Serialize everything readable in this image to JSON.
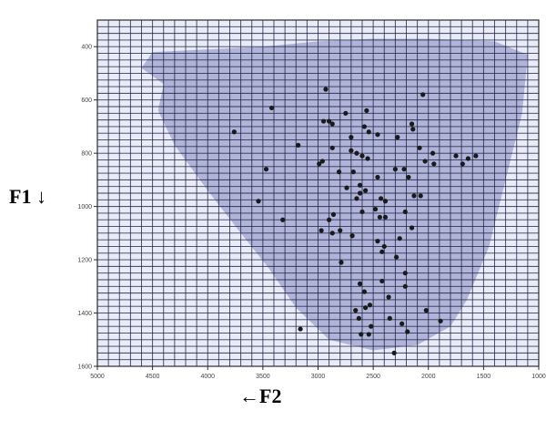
{
  "chart_data": {
    "type": "scatter",
    "xlabel": "←F2",
    "ylabel": "F1 ↓",
    "x_reversed": true,
    "y_reversed": true,
    "xlim": [
      5000,
      1000
    ],
    "ylim": [
      300,
      1600
    ],
    "xticks": [
      5000,
      4500,
      4000,
      3500,
      3000,
      2500,
      2000,
      1500,
      1000
    ],
    "yticks": [
      400,
      600,
      800,
      1000,
      1200,
      1400,
      1600
    ],
    "grid": true,
    "colors": {
      "background": "#e9ebf7",
      "region": "#a9aed4",
      "grid": "#1c2140",
      "frame": "#2c2c2c",
      "points": "#1a1a1a"
    },
    "region_outline": [
      [
        4400,
        540
      ],
      [
        4600,
        480
      ],
      [
        4500,
        420
      ],
      [
        4000,
        410
      ],
      [
        3500,
        400
      ],
      [
        3000,
        380
      ],
      [
        2500,
        370
      ],
      [
        2000,
        370
      ],
      [
        1400,
        380
      ],
      [
        1100,
        430
      ],
      [
        1150,
        650
      ],
      [
        1300,
        900
      ],
      [
        1450,
        1150
      ],
      [
        1650,
        1350
      ],
      [
        1800,
        1450
      ],
      [
        2100,
        1520
      ],
      [
        2500,
        1540
      ],
      [
        2900,
        1500
      ],
      [
        3200,
        1380
      ],
      [
        3450,
        1230
      ],
      [
        3700,
        1100
      ],
      [
        4000,
        940
      ],
      [
        4300,
        770
      ],
      [
        4450,
        640
      ]
    ],
    "points": [
      [
        3760,
        720
      ],
      [
        3420,
        630
      ],
      [
        2930,
        560
      ],
      [
        2560,
        640
      ],
      [
        2050,
        580
      ],
      [
        2750,
        650
      ],
      [
        2900,
        680
      ],
      [
        2870,
        690
      ],
      [
        2950,
        680
      ],
      [
        2580,
        700
      ],
      [
        2540,
        720
      ],
      [
        2700,
        740
      ],
      [
        2460,
        730
      ],
      [
        2280,
        740
      ],
      [
        2150,
        690
      ],
      [
        2140,
        710
      ],
      [
        3180,
        770
      ],
      [
        2870,
        780
      ],
      [
        2700,
        790
      ],
      [
        2650,
        800
      ],
      [
        2600,
        810
      ],
      [
        2550,
        820
      ],
      [
        2080,
        780
      ],
      [
        2030,
        830
      ],
      [
        1960,
        800
      ],
      [
        1950,
        840
      ],
      [
        1750,
        810
      ],
      [
        1690,
        840
      ],
      [
        1640,
        820
      ],
      [
        1570,
        810
      ],
      [
        3470,
        860
      ],
      [
        2990,
        840
      ],
      [
        2960,
        830
      ],
      [
        2810,
        870
      ],
      [
        2680,
        870
      ],
      [
        2620,
        920
      ],
      [
        2460,
        890
      ],
      [
        2300,
        860
      ],
      [
        2220,
        860
      ],
      [
        2180,
        890
      ],
      [
        2740,
        930
      ],
      [
        2620,
        950
      ],
      [
        2570,
        940
      ],
      [
        2650,
        970
      ],
      [
        2430,
        970
      ],
      [
        2390,
        980
      ],
      [
        2130,
        960
      ],
      [
        2070,
        960
      ],
      [
        3540,
        980
      ],
      [
        3320,
        1050
      ],
      [
        2900,
        1050
      ],
      [
        2860,
        1030
      ],
      [
        2600,
        1020
      ],
      [
        2480,
        1010
      ],
      [
        2440,
        1040
      ],
      [
        2390,
        1040
      ],
      [
        2210,
        1020
      ],
      [
        2150,
        1080
      ],
      [
        2970,
        1090
      ],
      [
        2870,
        1100
      ],
      [
        2800,
        1090
      ],
      [
        2690,
        1110
      ],
      [
        2460,
        1130
      ],
      [
        2400,
        1150
      ],
      [
        2260,
        1120
      ],
      [
        2420,
        1170
      ],
      [
        2290,
        1190
      ],
      [
        2210,
        1250
      ],
      [
        2790,
        1210
      ],
      [
        2620,
        1290
      ],
      [
        2580,
        1320
      ],
      [
        2530,
        1370
      ],
      [
        2360,
        1340
      ],
      [
        2210,
        1300
      ],
      [
        2420,
        1280
      ],
      [
        2660,
        1390
      ],
      [
        2570,
        1380
      ],
      [
        2520,
        1450
      ],
      [
        2350,
        1420
      ],
      [
        2240,
        1440
      ],
      [
        2190,
        1470
      ],
      [
        2630,
        1420
      ],
      [
        2610,
        1480
      ],
      [
        2540,
        1480
      ],
      [
        2020,
        1390
      ],
      [
        3160,
        1460
      ],
      [
        2310,
        1550
      ],
      [
        1890,
        1430
      ]
    ]
  }
}
